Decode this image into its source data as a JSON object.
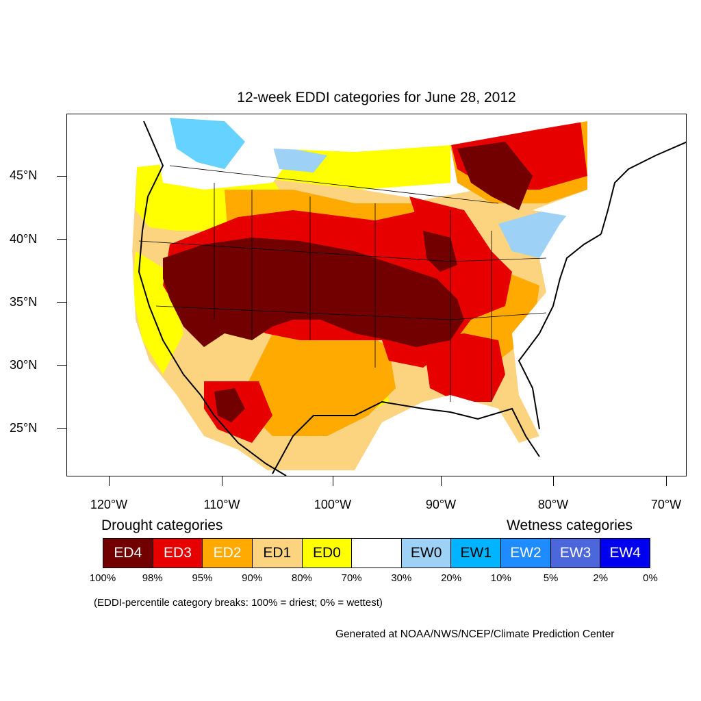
{
  "title": "12-week EDDI categories for June 28, 2012",
  "latitude_labels": [
    "45°N",
    "40°N",
    "35°N",
    "30°N",
    "25°N"
  ],
  "longitude_labels": [
    "120°W",
    "110°W",
    "100°W",
    "90°W",
    "80°W",
    "70°W"
  ],
  "legend": {
    "drought_title": "Drought categories",
    "wetness_title": "Wetness categories",
    "categories": [
      {
        "label": "ED4",
        "color": "#730000",
        "text_color": "#ffffff"
      },
      {
        "label": "ED3",
        "color": "#e60000",
        "text_color": "#ffffff"
      },
      {
        "label": "ED2",
        "color": "#ffaa00",
        "text_color": "#ffffff"
      },
      {
        "label": "ED1",
        "color": "#fcd37f",
        "text_color": "#000000"
      },
      {
        "label": "ED0",
        "color": "#ffff00",
        "text_color": "#000000"
      },
      {
        "label": "",
        "color": "#ffffff",
        "text_color": "#000000"
      },
      {
        "label": "EW0",
        "color": "#9dd1f5",
        "text_color": "#000000"
      },
      {
        "label": "EW1",
        "color": "#00b4ff",
        "text_color": "#000000"
      },
      {
        "label": "EW2",
        "color": "#1e8cff",
        "text_color": "#ffffff"
      },
      {
        "label": "EW3",
        "color": "#4c66dc",
        "text_color": "#ffffff"
      },
      {
        "label": "EW4",
        "color": "#0000f0",
        "text_color": "#ffffff"
      }
    ],
    "breaks": [
      "100%",
      "98%",
      "95%",
      "90%",
      "80%",
      "70%",
      "30%",
      "20%",
      "10%",
      "5%",
      "2%",
      "0%"
    ]
  },
  "note": "(EDDI-percentile category breaks: 100% = driest; 0% = wettest)",
  "credit": "Generated at NOAA/NWS/NCEP/Climate Prediction Center"
}
